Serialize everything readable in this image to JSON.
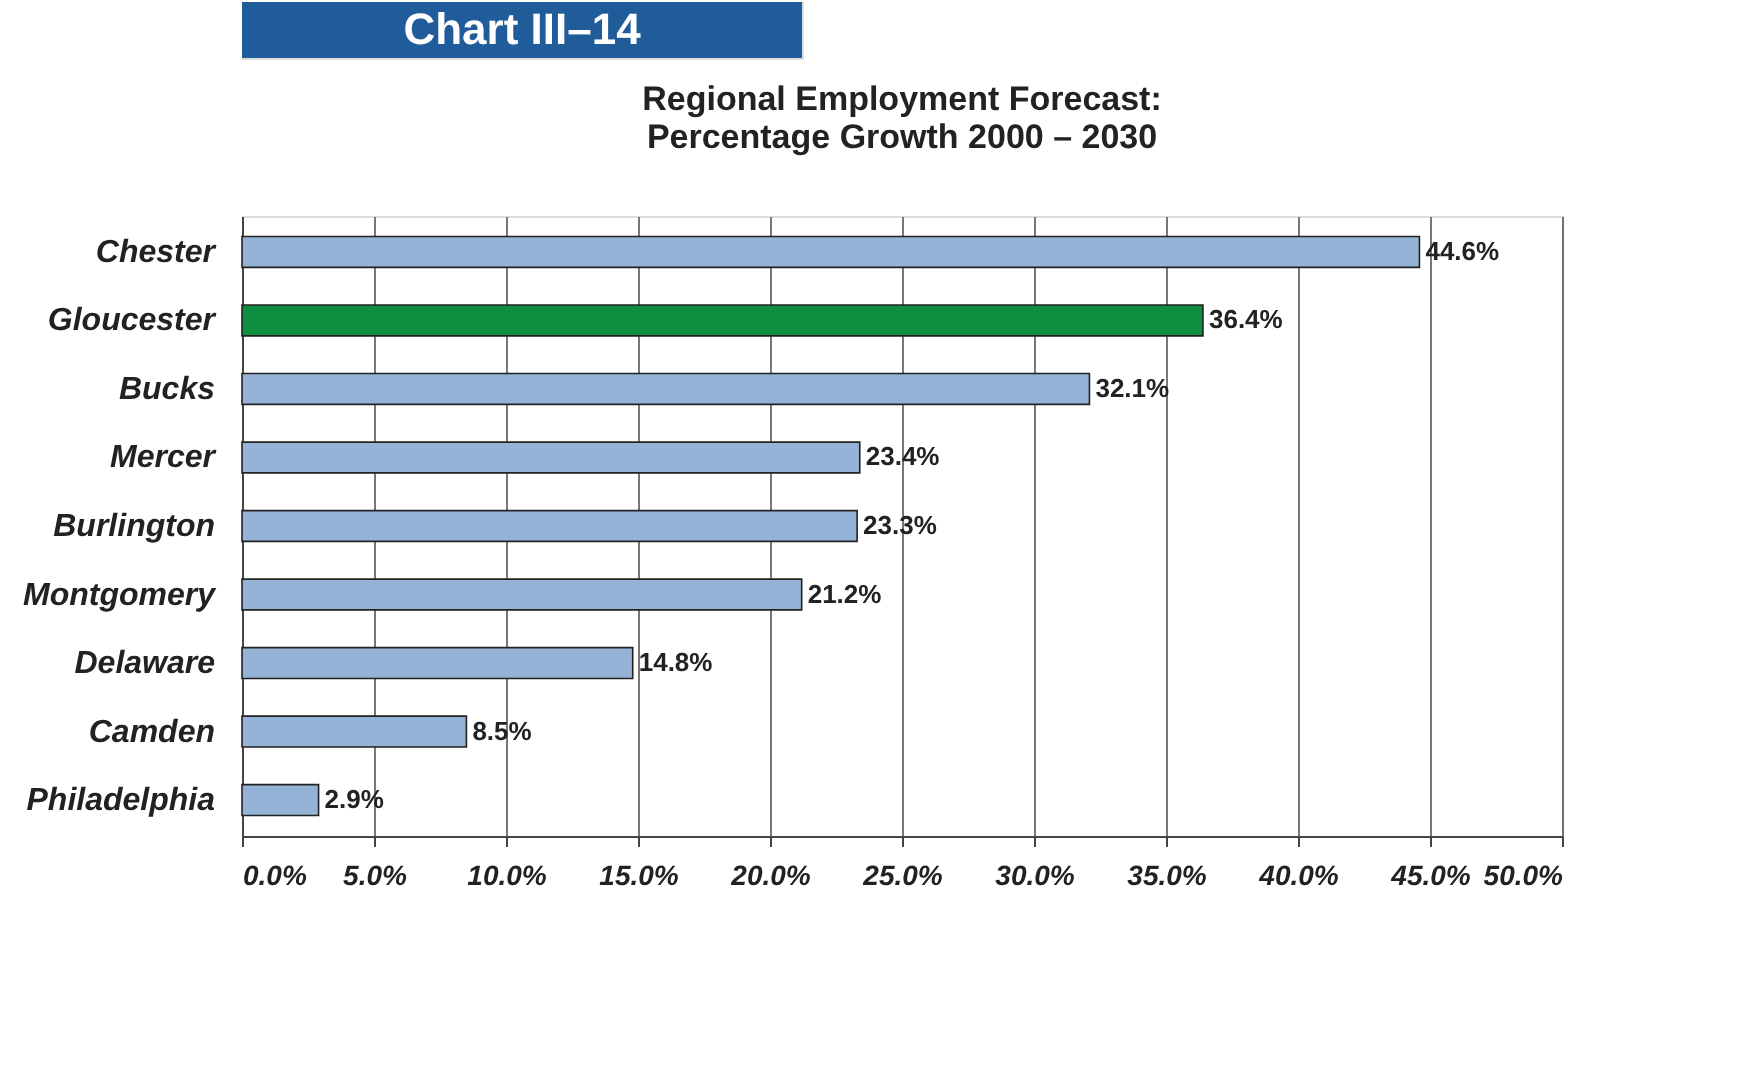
{
  "chart_data": {
    "type": "bar",
    "orientation": "horizontal",
    "title": "Regional Employment Forecast:\nPercentage Growth 2000 – 2030",
    "annotations": [
      "Chart III–14"
    ],
    "categories": [
      "Chester",
      "Gloucester",
      "Bucks",
      "Mercer",
      "Burlington",
      "Montgomery",
      "Delaware",
      "Camden",
      "Philadelphia"
    ],
    "values": [
      44.6,
      36.4,
      32.1,
      23.4,
      23.3,
      21.2,
      14.8,
      8.5,
      2.9
    ],
    "colors": [
      "#95b3d7",
      "#0e8f3f",
      "#95b3d7",
      "#95b3d7",
      "#95b3d7",
      "#95b3d7",
      "#95b3d7",
      "#95b3d7",
      "#95b3d7"
    ],
    "value_labels": [
      "44.6%",
      "36.4%",
      "32.1%",
      "23.4%",
      "23.3%",
      "21.2%",
      "14.8%",
      "8.5%",
      "2.9%"
    ],
    "xlim": [
      0,
      50
    ],
    "xticks": [
      {
        "value": 0,
        "label": "0.0%"
      },
      {
        "value": 5,
        "label": "5.0%"
      },
      {
        "value": 10,
        "label": "10.0%"
      },
      {
        "value": 15,
        "label": "15.0%"
      },
      {
        "value": 20,
        "label": "20.0%"
      },
      {
        "value": 25,
        "label": "25.0%"
      },
      {
        "value": 30,
        "label": "30.0%"
      },
      {
        "value": 35,
        "label": "35.0%"
      },
      {
        "value": 40,
        "label": "40.0%"
      },
      {
        "value": 45,
        "label": "45.0%"
      },
      {
        "value": 50,
        "label": "50.0%"
      }
    ],
    "grid": "x"
  }
}
